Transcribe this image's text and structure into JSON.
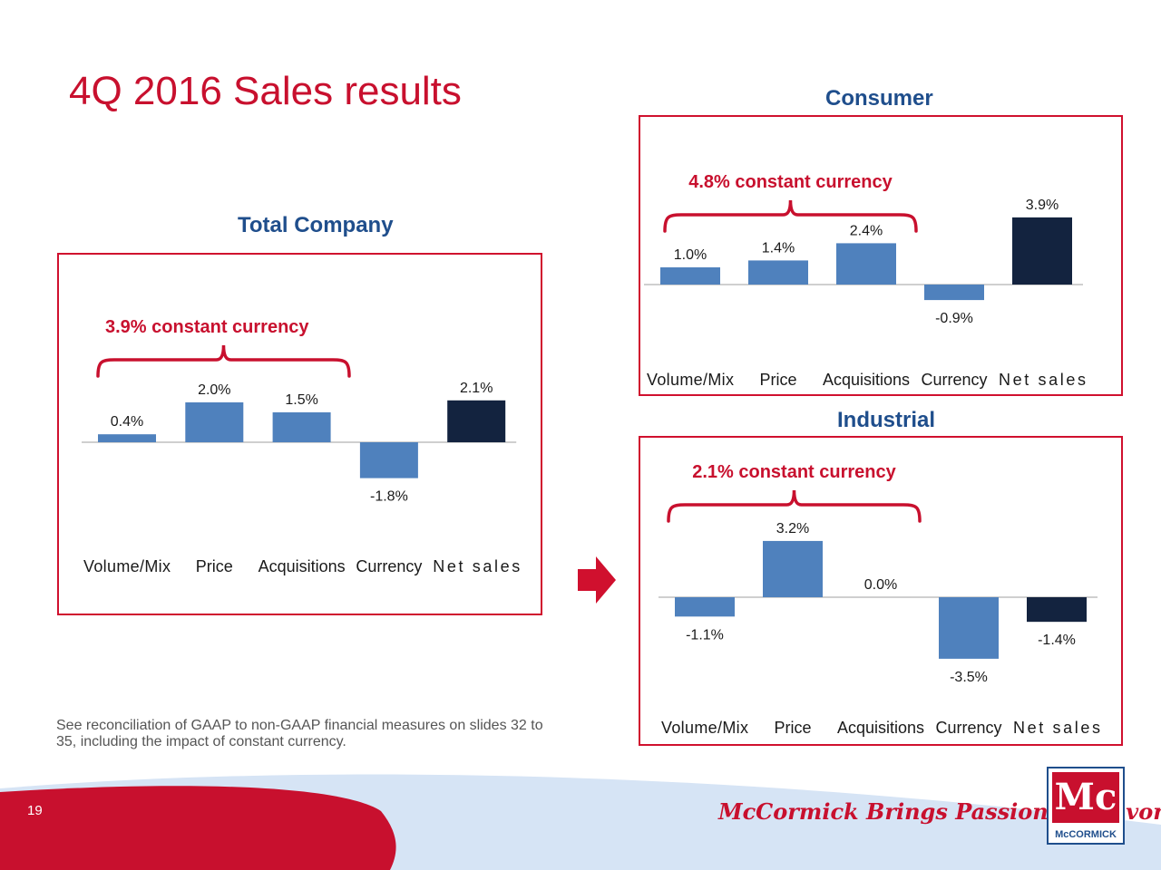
{
  "slide": {
    "title": "4Q 2016 Sales results",
    "page_number": "19",
    "footnote": "See reconciliation of GAAP to non-GAAP financial measures on slides 32 to 35, including the impact of constant currency.",
    "tagline": "McCormick Brings Passion to Flavor",
    "tagline_mark": "™",
    "logo_text": "McCORMICK",
    "logo_mark": "Mc"
  },
  "colors": {
    "bar": "#4f81bd",
    "net_sales_bar": "#13233f",
    "accent_red": "#c8102e",
    "section_blue": "#1f4e8c"
  },
  "chart_data": [
    {
      "type": "bar",
      "title": "Total Company",
      "bracket_label": "3.9% constant currency",
      "categories": [
        "Volume/Mix",
        "Price",
        "Acquisitions",
        "Currency",
        "Net sales"
      ],
      "values": [
        0.4,
        2.0,
        1.5,
        -1.8,
        2.1
      ],
      "value_labels": [
        "0.4%",
        "2.0%",
        "1.5%",
        "-1.8%",
        "2.1%"
      ],
      "ylim": [
        -3.5,
        3.5
      ],
      "grid": false,
      "legend": "none"
    },
    {
      "type": "bar",
      "title": "Consumer",
      "bracket_label": "4.8% constant currency",
      "categories": [
        "Volume/Mix",
        "Price",
        "Acquisitions",
        "Currency",
        "Net sales"
      ],
      "values": [
        1.0,
        1.4,
        2.4,
        -0.9,
        3.9
      ],
      "value_labels": [
        "1.0%",
        "1.4%",
        "2.4%",
        "-0.9%",
        "3.9%"
      ],
      "ylim": [
        -4.0,
        4.0
      ],
      "grid": false,
      "legend": "none"
    },
    {
      "type": "bar",
      "title": "Industrial",
      "bracket_label": "2.1% constant currency",
      "categories": [
        "Volume/Mix",
        "Price",
        "Acquisitions",
        "Currency",
        "Net sales"
      ],
      "values": [
        -1.1,
        3.2,
        0.0,
        -3.5,
        -1.4
      ],
      "value_labels": [
        "-1.1%",
        "3.2%",
        "0.0%",
        "-3.5%",
        "-1.4%"
      ],
      "ylim": [
        -4.0,
        4.0
      ],
      "grid": false,
      "legend": "none"
    }
  ]
}
